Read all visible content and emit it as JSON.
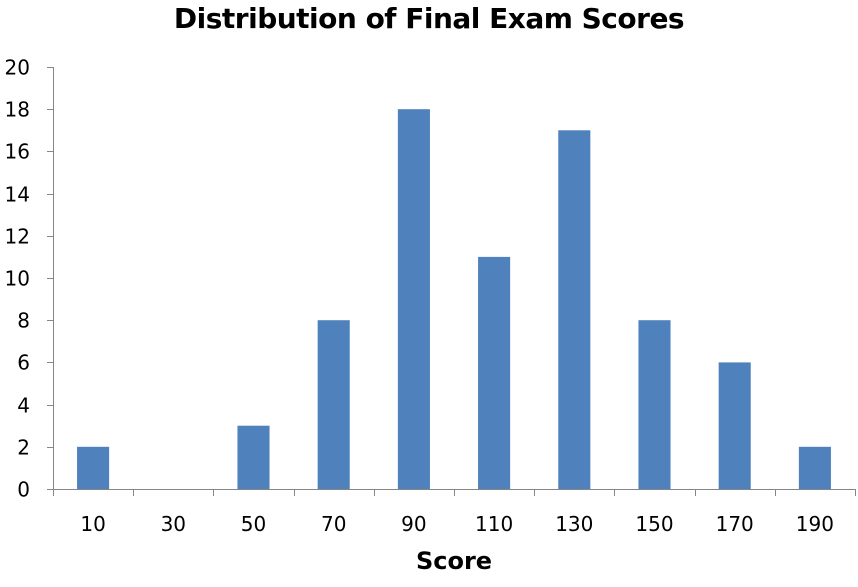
{
  "chart_data": {
    "type": "bar",
    "title": "Distribution of Final Exam Scores",
    "xlabel": "Score",
    "ylabel": "",
    "categories": [
      "10",
      "30",
      "50",
      "70",
      "90",
      "110",
      "130",
      "150",
      "170",
      "190"
    ],
    "values": [
      2,
      0,
      3,
      8,
      18,
      11,
      17,
      8,
      6,
      2
    ],
    "ylim": [
      0,
      20
    ],
    "yticks": [
      0,
      2,
      4,
      6,
      8,
      10,
      12,
      14,
      16,
      18,
      20
    ],
    "grid": false,
    "legend": null,
    "bar_color": "#4F81BD",
    "axis_color": "#868686"
  }
}
